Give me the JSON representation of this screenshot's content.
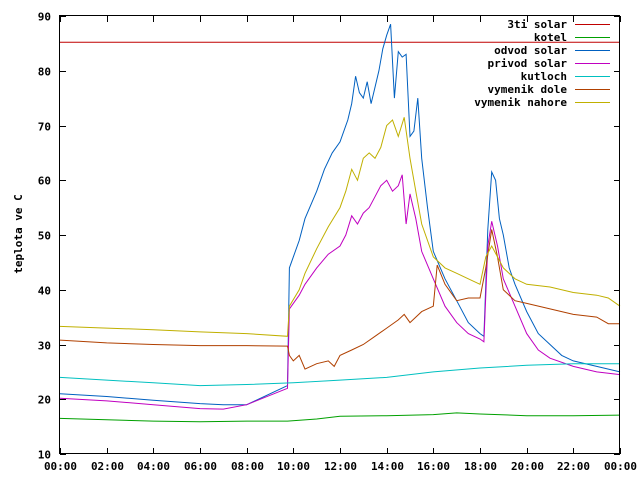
{
  "chart_data": {
    "type": "line",
    "title": "",
    "xlabel": "",
    "ylabel": "teplota ve C",
    "xlim": [
      "00:00",
      "24:00"
    ],
    "ylim": [
      10,
      90
    ],
    "x_ticks": [
      "00:00",
      "02:00",
      "04:00",
      "06:00",
      "08:00",
      "10:00",
      "12:00",
      "14:00",
      "16:00",
      "18:00",
      "20:00",
      "22:00",
      "00:00"
    ],
    "y_ticks": [
      10,
      20,
      30,
      40,
      50,
      60,
      70,
      80,
      90
    ],
    "grid": false,
    "legend_position": "top-right",
    "series": [
      {
        "name": "3ti solar",
        "color": "#c00000",
        "points": [
          [
            "00:00",
            85.2
          ],
          [
            "24:00",
            85.2
          ]
        ]
      },
      {
        "name": "kotel",
        "color": "#00a000",
        "points": [
          [
            "00:00",
            16.5
          ],
          [
            "04:00",
            16.0
          ],
          [
            "06:00",
            15.9
          ],
          [
            "08:00",
            16.0
          ],
          [
            "09:45",
            16.0
          ],
          [
            "11:00",
            16.4
          ],
          [
            "12:00",
            16.9
          ],
          [
            "14:00",
            17.0
          ],
          [
            "16:00",
            17.2
          ],
          [
            "17:00",
            17.5
          ],
          [
            "18:00",
            17.3
          ],
          [
            "20:00",
            17.0
          ],
          [
            "22:00",
            17.0
          ],
          [
            "24:00",
            17.1
          ]
        ]
      },
      {
        "name": "odvod solar",
        "color": "#0060c0",
        "points": [
          [
            "00:00",
            21.0
          ],
          [
            "02:00",
            20.5
          ],
          [
            "04:00",
            19.8
          ],
          [
            "06:00",
            19.2
          ],
          [
            "07:00",
            19.0
          ],
          [
            "08:00",
            19.0
          ],
          [
            "09:45",
            22.5
          ],
          [
            "09:50",
            44.0
          ],
          [
            "10:15",
            49.0
          ],
          [
            "10:30",
            53.0
          ],
          [
            "11:00",
            58.0
          ],
          [
            "11:20",
            62.0
          ],
          [
            "11:40",
            65.0
          ],
          [
            "12:00",
            67.0
          ],
          [
            "12:20",
            71.0
          ],
          [
            "12:30",
            74.0
          ],
          [
            "12:40",
            79.0
          ],
          [
            "12:50",
            76.0
          ],
          [
            "13:00",
            75.0
          ],
          [
            "13:10",
            78.0
          ],
          [
            "13:20",
            74.0
          ],
          [
            "13:30",
            77.0
          ],
          [
            "13:40",
            80.0
          ],
          [
            "13:50",
            84.0
          ],
          [
            "14:00",
            86.5
          ],
          [
            "14:10",
            88.5
          ],
          [
            "14:20",
            75.0
          ],
          [
            "14:30",
            83.5
          ],
          [
            "14:40",
            82.5
          ],
          [
            "14:50",
            83.0
          ],
          [
            "15:00",
            68.0
          ],
          [
            "15:10",
            69.0
          ],
          [
            "15:20",
            75.0
          ],
          [
            "15:30",
            64.0
          ],
          [
            "15:45",
            55.0
          ],
          [
            "16:00",
            47.0
          ],
          [
            "16:30",
            42.0
          ],
          [
            "17:00",
            38.0
          ],
          [
            "17:30",
            34.0
          ],
          [
            "18:00",
            32.0
          ],
          [
            "18:10",
            31.5
          ],
          [
            "18:20",
            51.0
          ],
          [
            "18:30",
            61.5
          ],
          [
            "18:40",
            60.0
          ],
          [
            "18:50",
            53.0
          ],
          [
            "19:00",
            50.0
          ],
          [
            "19:15",
            44.0
          ],
          [
            "19:30",
            41.0
          ],
          [
            "20:00",
            36.0
          ],
          [
            "20:30",
            32.0
          ],
          [
            "21:00",
            30.0
          ],
          [
            "21:30",
            28.0
          ],
          [
            "22:00",
            27.0
          ],
          [
            "23:00",
            26.0
          ],
          [
            "24:00",
            25.0
          ]
        ]
      },
      {
        "name": "privod solar",
        "color": "#c000c0",
        "points": [
          [
            "00:00",
            20.2
          ],
          [
            "02:00",
            19.7
          ],
          [
            "04:00",
            19.0
          ],
          [
            "06:00",
            18.3
          ],
          [
            "07:00",
            18.2
          ],
          [
            "08:00",
            19.0
          ],
          [
            "09:45",
            22.0
          ],
          [
            "09:50",
            36.5
          ],
          [
            "10:15",
            39.0
          ],
          [
            "10:30",
            41.0
          ],
          [
            "11:00",
            44.0
          ],
          [
            "11:30",
            46.5
          ],
          [
            "12:00",
            48.0
          ],
          [
            "12:15",
            50.0
          ],
          [
            "12:30",
            53.5
          ],
          [
            "12:45",
            52.0
          ],
          [
            "13:00",
            54.0
          ],
          [
            "13:15",
            55.0
          ],
          [
            "13:30",
            57.0
          ],
          [
            "13:45",
            59.0
          ],
          [
            "14:00",
            60.0
          ],
          [
            "14:15",
            58.0
          ],
          [
            "14:30",
            59.0
          ],
          [
            "14:40",
            61.0
          ],
          [
            "14:50",
            52.0
          ],
          [
            "15:00",
            57.5
          ],
          [
            "15:15",
            53.0
          ],
          [
            "15:30",
            47.0
          ],
          [
            "16:00",
            42.0
          ],
          [
            "16:30",
            37.0
          ],
          [
            "17:00",
            34.0
          ],
          [
            "17:30",
            32.0
          ],
          [
            "18:00",
            31.0
          ],
          [
            "18:10",
            30.5
          ],
          [
            "18:20",
            48.0
          ],
          [
            "18:30",
            52.5
          ],
          [
            "18:45",
            48.0
          ],
          [
            "19:00",
            42.0
          ],
          [
            "19:30",
            37.0
          ],
          [
            "20:00",
            32.0
          ],
          [
            "20:30",
            29.0
          ],
          [
            "21:00",
            27.5
          ],
          [
            "22:00",
            26.0
          ],
          [
            "23:00",
            25.0
          ],
          [
            "24:00",
            24.5
          ]
        ]
      },
      {
        "name": "kutloch",
        "color": "#00c0c0",
        "points": [
          [
            "00:00",
            24.0
          ],
          [
            "02:00",
            23.5
          ],
          [
            "04:00",
            23.0
          ],
          [
            "06:00",
            22.5
          ],
          [
            "08:00",
            22.7
          ],
          [
            "10:00",
            23.0
          ],
          [
            "12:00",
            23.5
          ],
          [
            "14:00",
            24.0
          ],
          [
            "16:00",
            25.0
          ],
          [
            "18:00",
            25.7
          ],
          [
            "20:00",
            26.2
          ],
          [
            "22:00",
            26.5
          ],
          [
            "24:00",
            26.5
          ]
        ]
      },
      {
        "name": "vymenik dole",
        "color": "#b04000",
        "points": [
          [
            "00:00",
            30.8
          ],
          [
            "02:00",
            30.3
          ],
          [
            "04:00",
            30.0
          ],
          [
            "06:00",
            29.8
          ],
          [
            "08:00",
            29.8
          ],
          [
            "09:45",
            29.7
          ],
          [
            "09:50",
            28.0
          ],
          [
            "10:00",
            27.0
          ],
          [
            "10:15",
            28.0
          ],
          [
            "10:30",
            25.5
          ],
          [
            "11:00",
            26.5
          ],
          [
            "11:30",
            27.0
          ],
          [
            "11:45",
            26.0
          ],
          [
            "12:00",
            28.0
          ],
          [
            "12:30",
            29.0
          ],
          [
            "13:00",
            30.0
          ],
          [
            "13:30",
            31.5
          ],
          [
            "14:00",
            33.0
          ],
          [
            "14:30",
            34.5
          ],
          [
            "14:45",
            35.5
          ],
          [
            "15:00",
            34.0
          ],
          [
            "15:30",
            36.0
          ],
          [
            "16:00",
            37.0
          ],
          [
            "16:10",
            44.5
          ],
          [
            "16:30",
            41.0
          ],
          [
            "17:00",
            38.0
          ],
          [
            "17:30",
            38.5
          ],
          [
            "18:00",
            38.5
          ],
          [
            "18:15",
            44.0
          ],
          [
            "18:30",
            51.0
          ],
          [
            "18:45",
            46.0
          ],
          [
            "19:00",
            40.0
          ],
          [
            "19:30",
            38.0
          ],
          [
            "20:00",
            37.5
          ],
          [
            "21:00",
            36.5
          ],
          [
            "22:00",
            35.5
          ],
          [
            "23:00",
            35.0
          ],
          [
            "23:30",
            33.8
          ],
          [
            "24:00",
            33.8
          ]
        ]
      },
      {
        "name": "vymenik nahore",
        "color": "#c0b000",
        "points": [
          [
            "00:00",
            33.3
          ],
          [
            "02:00",
            33.0
          ],
          [
            "04:00",
            32.7
          ],
          [
            "06:00",
            32.3
          ],
          [
            "08:00",
            32.0
          ],
          [
            "09:45",
            31.5
          ],
          [
            "09:50",
            37.0
          ],
          [
            "10:15",
            40.0
          ],
          [
            "10:30",
            43.0
          ],
          [
            "11:00",
            47.5
          ],
          [
            "11:30",
            51.5
          ],
          [
            "12:00",
            55.0
          ],
          [
            "12:15",
            58.0
          ],
          [
            "12:30",
            62.0
          ],
          [
            "12:45",
            60.0
          ],
          [
            "13:00",
            64.0
          ],
          [
            "13:15",
            65.0
          ],
          [
            "13:30",
            64.0
          ],
          [
            "13:45",
            66.0
          ],
          [
            "14:00",
            70.0
          ],
          [
            "14:15",
            71.0
          ],
          [
            "14:30",
            68.0
          ],
          [
            "14:45",
            71.5
          ],
          [
            "15:00",
            64.0
          ],
          [
            "15:15",
            58.0
          ],
          [
            "15:30",
            52.0
          ],
          [
            "16:00",
            46.0
          ],
          [
            "16:30",
            44.0
          ],
          [
            "17:00",
            43.0
          ],
          [
            "17:30",
            42.0
          ],
          [
            "18:00",
            41.0
          ],
          [
            "18:15",
            46.0
          ],
          [
            "18:30",
            48.0
          ],
          [
            "18:45",
            46.0
          ],
          [
            "19:00",
            44.0
          ],
          [
            "19:30",
            42.0
          ],
          [
            "20:00",
            41.0
          ],
          [
            "21:00",
            40.5
          ],
          [
            "22:00",
            39.5
          ],
          [
            "23:00",
            39.0
          ],
          [
            "23:30",
            38.5
          ],
          [
            "24:00",
            37.0
          ]
        ]
      }
    ]
  }
}
